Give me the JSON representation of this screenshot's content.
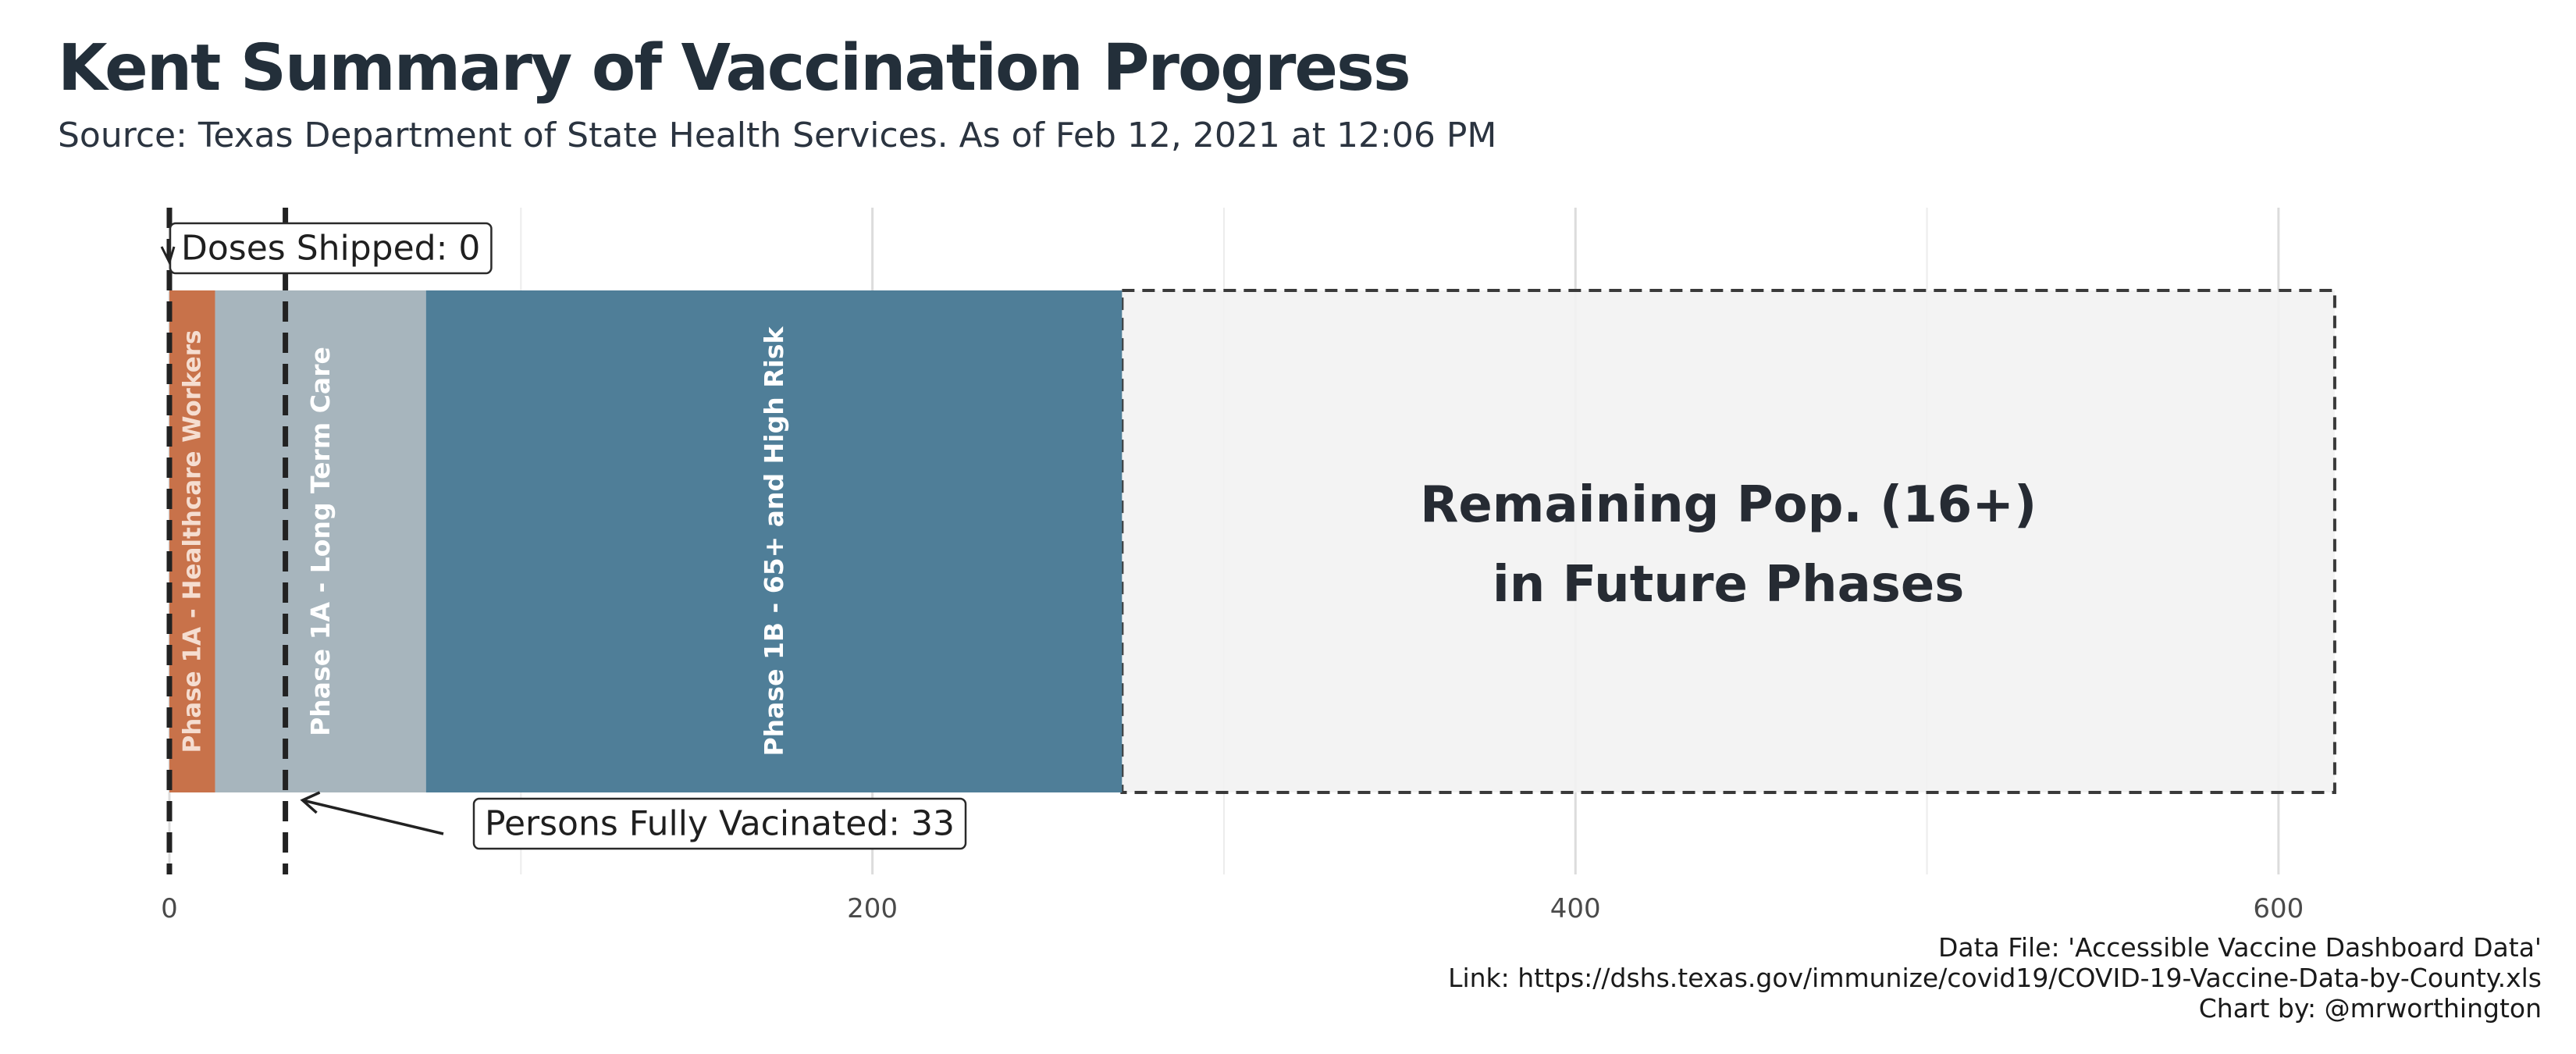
{
  "title": "Kent Summary of Vaccination Progress",
  "subtitle": "Source: Texas Department of State Health Services. As of Feb 12, 2021 at 12:06 PM",
  "caption": {
    "line1": "Data File: 'Accessible Vaccine Dashboard Data'",
    "line2": "Link: https://dshs.texas.gov/immunize/covid19/COVID-19-Vaccine-Data-by-County.xls",
    "line3": "Chart by: @mrworthington"
  },
  "chart_data": {
    "type": "bar",
    "orientation": "horizontal-stacked",
    "title": "Kent Summary of Vaccination Progress",
    "subtitle": "Source: Texas Department of State Health Services. As of Feb 12, 2021 at 12:06 PM",
    "xlabel": "",
    "ylabel": "",
    "xlim": [
      0,
      640
    ],
    "x_ticks": [
      0,
      200,
      400,
      600
    ],
    "grid": true,
    "segments": [
      {
        "label": "Phase 1A - Healthcare Workers",
        "start": 0,
        "end": 13,
        "color": "#c8724a",
        "text_color": "#f5ddd0"
      },
      {
        "label": "Phase 1A - Long Term Care",
        "start": 13,
        "end": 73,
        "color": "#a7b5bd",
        "text_color": "#ffffff"
      },
      {
        "label": "Phase 1B - 65+ and High Risk",
        "start": 73,
        "end": 271,
        "color": "#4f7e98",
        "text_color": "#ffffff"
      }
    ],
    "remaining": {
      "label_line1": "Remaining Pop. (16+)",
      "label_line2": "in Future Phases",
      "start": 271,
      "end": 616,
      "fill": "#f2f2f2",
      "text_color": "#262b33"
    },
    "markers": [
      {
        "label": "Doses Shipped: 0",
        "value": 0
      },
      {
        "label": "Persons Fully Vacinated: 33",
        "value": 33
      }
    ]
  }
}
